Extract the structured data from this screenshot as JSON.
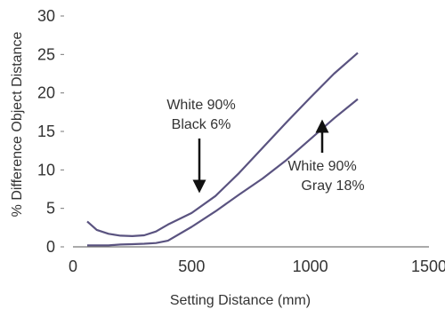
{
  "chart_data": {
    "type": "line",
    "title": "",
    "xlabel": "Setting Distance (mm)",
    "ylabel": "% Difference Object Distance",
    "xlim": [
      0,
      1500
    ],
    "ylim": [
      0,
      30
    ],
    "x_ticks": [
      "0",
      "500",
      "1000",
      "1500"
    ],
    "y_ticks": [
      "0",
      "5",
      "10",
      "15",
      "20",
      "25",
      "30"
    ],
    "grid": false,
    "legend": "none",
    "line_color": "#5a5380",
    "series": [
      {
        "x": [
          60,
          100,
          150,
          200,
          250,
          300,
          350,
          400,
          500,
          600,
          700,
          800,
          900,
          1000,
          1100,
          1200
        ],
        "values": [
          3.3,
          2.2,
          1.7,
          1.45,
          1.4,
          1.5,
          2.0,
          2.9,
          4.4,
          6.6,
          9.6,
          12.9,
          16.2,
          19.4,
          22.5,
          25.2
        ]
      },
      {
        "x": [
          60,
          150,
          200,
          250,
          300,
          350,
          400,
          500,
          600,
          700,
          800,
          900,
          1000,
          1100,
          1200
        ],
        "values": [
          0.2,
          0.2,
          0.3,
          0.35,
          0.4,
          0.5,
          0.8,
          2.6,
          4.6,
          6.8,
          8.9,
          11.3,
          14.0,
          16.7,
          19.2
        ]
      }
    ],
    "annotations": [
      {
        "lines": [
          "White 90%",
          "Black 6%"
        ],
        "arrow": "down",
        "points_to_series": 0
      },
      {
        "lines": [
          "White 90%",
          "Gray 18%"
        ],
        "arrow": "up",
        "points_to_series": 1
      }
    ]
  }
}
